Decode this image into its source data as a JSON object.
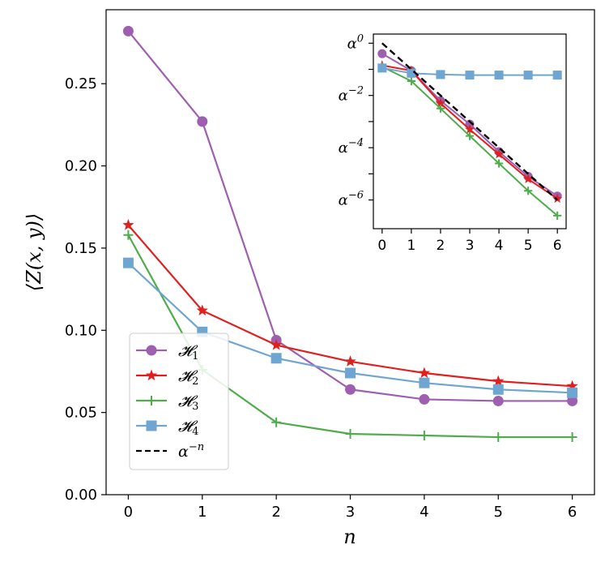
{
  "chart_data": [
    {
      "type": "line",
      "xlabel": "n",
      "ylabel": "⟨Z(x, y)⟩",
      "xlim": [
        -0.3,
        6.3
      ],
      "ylim": [
        0,
        0.295
      ],
      "x": [
        0,
        1,
        2,
        3,
        4,
        5,
        6
      ],
      "x_ticks": [
        0,
        1,
        2,
        3,
        4,
        5,
        6
      ],
      "x_tick_labels": [
        "0",
        "1",
        "2",
        "3",
        "4",
        "5",
        "6"
      ],
      "y_ticks": [
        0.0,
        0.05,
        0.1,
        0.15,
        0.2,
        0.25
      ],
      "y_tick_labels": [
        "0.00",
        "0.05",
        "0.10",
        "0.15",
        "0.20",
        "0.25"
      ],
      "series": [
        {
          "name": "𝓗₁",
          "label_base": "𝓗",
          "label_sub": "1",
          "color": "#9e5fb0",
          "marker": "circle",
          "values": [
            0.282,
            0.227,
            0.094,
            0.064,
            0.058,
            0.057,
            0.057
          ]
        },
        {
          "name": "𝓗₂",
          "label_base": "𝓗",
          "label_sub": "2",
          "color": "#e01f1f",
          "marker": "star",
          "values": [
            0.164,
            0.112,
            0.091,
            0.081,
            0.074,
            0.069,
            0.066
          ]
        },
        {
          "name": "𝓗₃",
          "label_base": "𝓗",
          "label_sub": "3",
          "color": "#4eac4b",
          "marker": "plus",
          "values": [
            0.158,
            0.076,
            0.044,
            0.037,
            0.036,
            0.035,
            0.035
          ]
        },
        {
          "name": "𝓗₄",
          "label_base": "𝓗",
          "label_sub": "4",
          "color": "#6fa6d1",
          "marker": "square",
          "values": [
            0.141,
            0.099,
            0.083,
            0.074,
            0.068,
            0.064,
            0.062
          ]
        }
      ],
      "legend": {
        "placement": "lower-left",
        "extra_entry": {
          "base": "α",
          "sup": "−n",
          "color": "#000000",
          "style": "dashed"
        }
      }
    },
    {
      "type": "line",
      "subtitle": "inset",
      "y_scale": "log base α (exponent shown)",
      "xlim": [
        -0.3,
        6.3
      ],
      "ylim": [
        -7.1,
        0.35
      ],
      "x": [
        0,
        1,
        2,
        3,
        4,
        5,
        6
      ],
      "x_ticks": [
        0,
        1,
        2,
        3,
        4,
        5,
        6
      ],
      "x_tick_labels": [
        "0",
        "1",
        "2",
        "3",
        "4",
        "5",
        "6"
      ],
      "y_ticks": [
        0,
        -1,
        -2,
        -3,
        -4,
        -5,
        -6
      ],
      "y_tick_labels": [
        {
          "base": "α",
          "sup": "0"
        },
        {
          "base": "",
          "sup": ""
        },
        {
          "base": "α",
          "sup": "−2"
        },
        {
          "base": "",
          "sup": ""
        },
        {
          "base": "α",
          "sup": "−4"
        },
        {
          "base": "",
          "sup": ""
        },
        {
          "base": "α",
          "sup": "−6"
        }
      ],
      "series": [
        {
          "name": "𝓗₁",
          "color": "#9e5fb0",
          "marker": "circle",
          "values": [
            -0.4,
            -1.05,
            -2.2,
            -3.1,
            -4.15,
            -5.1,
            -5.85
          ]
        },
        {
          "name": "𝓗₂",
          "color": "#e01f1f",
          "marker": "star",
          "values": [
            -0.85,
            -1.05,
            -2.3,
            -3.3,
            -4.25,
            -5.2,
            -5.95
          ]
        },
        {
          "name": "𝓗₃",
          "color": "#4eac4b",
          "marker": "plus",
          "values": [
            -0.9,
            -1.45,
            -2.5,
            -3.55,
            -4.6,
            -5.65,
            -6.6
          ]
        },
        {
          "name": "𝓗₄",
          "color": "#6fa6d1",
          "marker": "square",
          "values": [
            -0.95,
            -1.15,
            -1.2,
            -1.22,
            -1.22,
            -1.22,
            -1.22
          ]
        },
        {
          "name": "α^−n",
          "color": "#000000",
          "style": "dashed",
          "values": [
            0,
            -1,
            -2,
            -3,
            -4,
            -5,
            -6
          ]
        }
      ]
    }
  ]
}
